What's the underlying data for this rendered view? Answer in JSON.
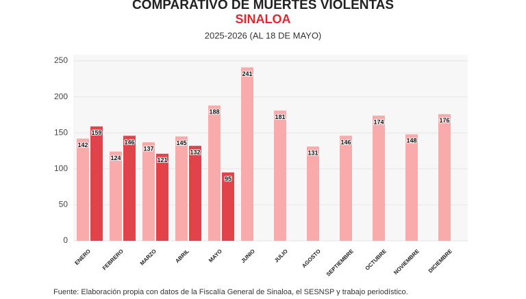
{
  "chart_data": {
    "type": "bar",
    "title": "COMPARATIVO DE MUERTES VIOLENTAS",
    "subtitle": "SINALOA",
    "note": "2025-2026 (AL 18 DE MAYO)",
    "source": "Fuente: Elaboración propia con datos de la Fiscalía General de Sinaloa, el SESNSP y trabajo periodístico.",
    "categories": [
      "ENERO",
      "FEBRERO",
      "MARZO",
      "ABRIL",
      "MAYO",
      "JUNIO",
      "JULIO",
      "AGOSTO",
      "SEPTIEMBRE",
      "OCTUBRE",
      "NOVIEMBRE",
      "DICIEMBRE"
    ],
    "series": [
      {
        "color": "#f9aaaa",
        "values": [
          142,
          124,
          137,
          145,
          188,
          241,
          181,
          131,
          146,
          174,
          148,
          176
        ]
      },
      {
        "color": "#e2434b",
        "values": [
          159,
          146,
          121,
          132,
          95,
          null,
          null,
          null,
          null,
          null,
          null,
          null
        ]
      }
    ],
    "ylim": [
      0,
      250
    ],
    "yticks": [
      0,
      50,
      100,
      150,
      200,
      250
    ],
    "grid": true
  }
}
